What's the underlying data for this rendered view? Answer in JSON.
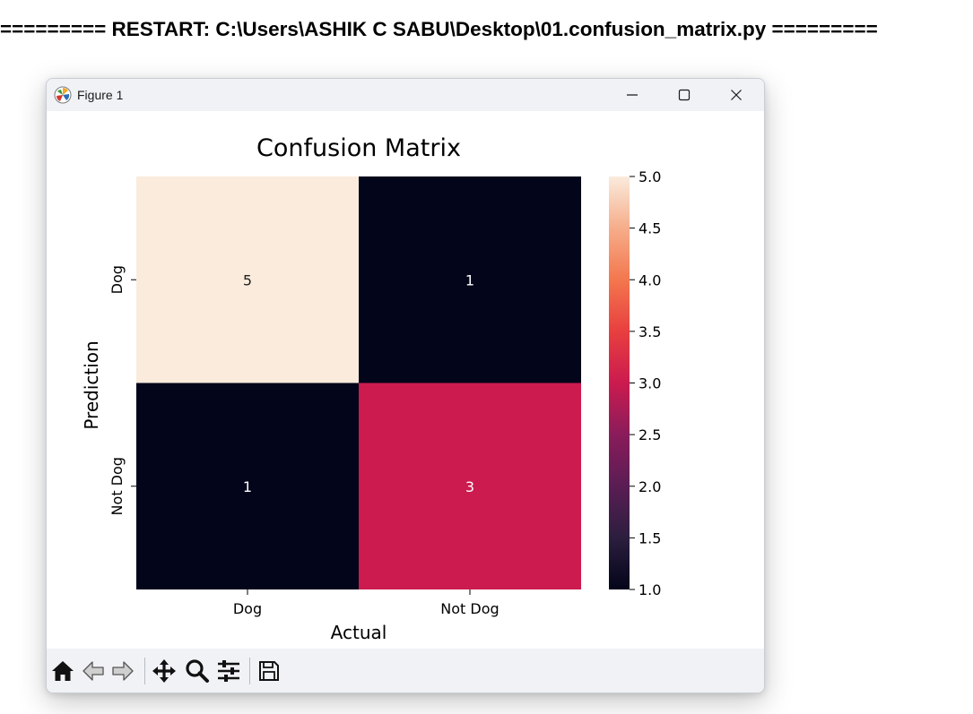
{
  "shell": {
    "restart_line": "========= RESTART: C:\\Users\\ASHIK C SABU\\Desktop\\01.confusion_matrix.py ========="
  },
  "window": {
    "title": "Figure 1",
    "controls": [
      "minimize",
      "maximize",
      "close"
    ]
  },
  "toolbar": {
    "icons": [
      "home-icon",
      "back-arrow-icon",
      "forward-arrow-icon",
      "pan-icon",
      "zoom-icon",
      "configure-subplots-icon",
      "save-icon"
    ]
  },
  "chart_data": {
    "type": "heatmap",
    "title": "Confusion Matrix",
    "xlabel": "Actual",
    "ylabel": "Prediction",
    "x_categories": [
      "Dog",
      "Not Dog"
    ],
    "y_categories": [
      "Dog",
      "Not Dog"
    ],
    "values": [
      [
        5,
        1
      ],
      [
        1,
        3
      ]
    ],
    "annotations": [
      "5",
      "1",
      "1",
      "3"
    ],
    "colorbar": {
      "vmin": 1.0,
      "vmax": 5.0,
      "ticks": [
        "1.0",
        "1.5",
        "2.0",
        "2.5",
        "3.0",
        "3.5",
        "4.0",
        "4.5",
        "5.0"
      ],
      "colormap": "rocket"
    },
    "colors": {
      "5": "#faebdd",
      "3": "#cb1b4f",
      "1": "#03051a"
    },
    "grid": false
  }
}
